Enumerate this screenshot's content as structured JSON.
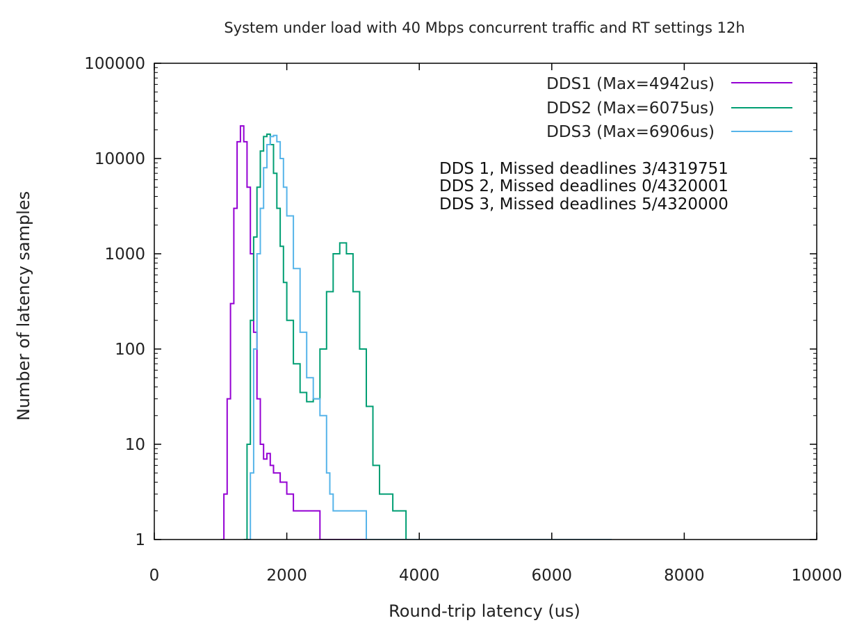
{
  "chart_data": {
    "type": "line",
    "title": "System under load with 40 Mbps concurrent traffic and RT settings 12h",
    "xlabel": "Round-trip latency (us)",
    "ylabel": "Number of latency samples",
    "xlim": [
      0,
      10000
    ],
    "ylim": [
      1,
      100000
    ],
    "y_scale": "log",
    "x_ticks": [
      0,
      2000,
      4000,
      6000,
      8000,
      10000
    ],
    "x_tick_labels": [
      "0",
      "2000",
      "4000",
      "6000",
      "8000",
      "10000"
    ],
    "y_ticks": [
      1,
      10,
      100,
      1000,
      10000,
      100000
    ],
    "y_tick_labels": [
      "1",
      "10",
      "100",
      "1000",
      "10000",
      "100000"
    ],
    "grid": false,
    "legend_position": "top-right",
    "series": [
      {
        "name": "DDS1 (Max=4942us)",
        "color": "#9400d3",
        "x": [
          1000,
          1050,
          1100,
          1150,
          1200,
          1250,
          1300,
          1350,
          1400,
          1450,
          1500,
          1550,
          1600,
          1650,
          1700,
          1750,
          1800,
          1900,
          2000,
          2100,
          2200,
          2300,
          2400,
          2500,
          2600,
          2800,
          3000,
          3500,
          4000,
          4500,
          4942
        ],
        "values": [
          1,
          3,
          30,
          300,
          3000,
          15000,
          22000,
          15000,
          5000,
          1000,
          150,
          30,
          10,
          7,
          8,
          6,
          5,
          4,
          3,
          2,
          2,
          2,
          2,
          1,
          1,
          1,
          1,
          1,
          1,
          1,
          1
        ]
      },
      {
        "name": "DDS2 (Max=6075us)",
        "color": "#009e73",
        "x": [
          1350,
          1400,
          1450,
          1500,
          1550,
          1600,
          1650,
          1700,
          1750,
          1800,
          1850,
          1900,
          1950,
          2000,
          2100,
          2200,
          2300,
          2400,
          2500,
          2600,
          2700,
          2800,
          2900,
          3000,
          3100,
          3200,
          3300,
          3400,
          3600,
          3800,
          4200,
          4800,
          5500,
          6075
        ],
        "values": [
          1,
          10,
          200,
          1500,
          5000,
          12000,
          17000,
          18000,
          14000,
          7000,
          3000,
          1200,
          500,
          200,
          70,
          35,
          28,
          30,
          100,
          400,
          1000,
          1300,
          1000,
          400,
          100,
          25,
          6,
          3,
          2,
          1,
          1,
          1,
          1,
          1
        ]
      },
      {
        "name": "DDS3 (Max=6906us)",
        "color": "#56b4e9",
        "x": [
          1400,
          1450,
          1500,
          1550,
          1600,
          1650,
          1700,
          1750,
          1800,
          1850,
          1900,
          1950,
          2000,
          2100,
          2200,
          2300,
          2400,
          2500,
          2600,
          2650,
          2700,
          2800,
          2900,
          3000,
          3200,
          3500,
          4000,
          4500,
          5000,
          5800,
          6400,
          6906
        ],
        "values": [
          1,
          5,
          100,
          1000,
          3000,
          8000,
          14000,
          17000,
          17500,
          15000,
          10000,
          5000,
          2500,
          700,
          150,
          50,
          30,
          20,
          5,
          3,
          2,
          2,
          2,
          2,
          1,
          1,
          1,
          1,
          1,
          1,
          1,
          1
        ]
      }
    ],
    "annotations": [
      "DDS 1, Missed deadlines 3/4319751",
      "DDS 2, Missed deadlines 0/4320001",
      "DDS 3, Missed deadlines 5/4320000"
    ]
  }
}
